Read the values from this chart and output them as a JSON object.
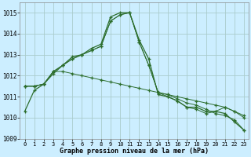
{
  "hours": [
    0,
    1,
    2,
    3,
    4,
    5,
    6,
    7,
    8,
    9,
    10,
    11,
    12,
    13,
    14,
    15,
    16,
    17,
    18,
    19,
    20,
    21,
    22,
    23
  ],
  "series1": [
    1010.3,
    1011.3,
    1011.6,
    1012.1,
    1012.5,
    1012.9,
    1013.0,
    1013.3,
    1013.5,
    1014.8,
    1015.0,
    1015.0,
    1013.7,
    1012.8,
    1011.1,
    1011.0,
    1010.8,
    1010.5,
    1010.5,
    1010.3,
    1010.3,
    1010.2,
    1009.8,
    1009.4
  ],
  "series2": [
    1011.5,
    1011.5,
    1011.6,
    1012.2,
    1012.5,
    1012.8,
    1013.0,
    1013.2,
    1013.4,
    1014.6,
    1014.9,
    1015.0,
    1013.6,
    1012.5,
    1011.2,
    1011.1,
    1010.9,
    1010.7,
    1010.6,
    1010.4,
    1010.2,
    1010.1,
    1009.9,
    1009.4
  ],
  "series3": [
    1011.5,
    1011.5,
    1011.6,
    1012.2,
    1012.5,
    1012.8,
    1013.0,
    1013.2,
    1013.4,
    1014.6,
    1014.9,
    1015.0,
    1013.6,
    1012.5,
    1011.2,
    1011.0,
    1010.8,
    1010.5,
    1010.4,
    1010.2,
    1010.3,
    1010.5,
    1010.3,
    1010.1
  ],
  "series4": [
    1011.5,
    1011.5,
    1011.6,
    1012.2,
    1012.2,
    1012.1,
    1012.0,
    1011.9,
    1011.8,
    1011.7,
    1011.6,
    1011.5,
    1011.4,
    1011.3,
    1011.2,
    1011.1,
    1011.0,
    1010.9,
    1010.8,
    1010.7,
    1010.6,
    1010.5,
    1010.3,
    1010.0
  ],
  "bg_color": "#cceeff",
  "grid_color": "#aacccc",
  "line_color": "#2d6e2d",
  "xlabel": "Graphe pression niveau de la mer (hPa)",
  "ylim": [
    1009.0,
    1015.5
  ],
  "yticks": [
    1009,
    1010,
    1011,
    1012,
    1013,
    1014,
    1015
  ],
  "xticks": [
    0,
    1,
    2,
    3,
    4,
    5,
    6,
    7,
    8,
    9,
    10,
    11,
    12,
    13,
    14,
    15,
    16,
    17,
    18,
    19,
    20,
    21,
    22,
    23
  ],
  "xlim": [
    -0.5,
    23.5
  ]
}
